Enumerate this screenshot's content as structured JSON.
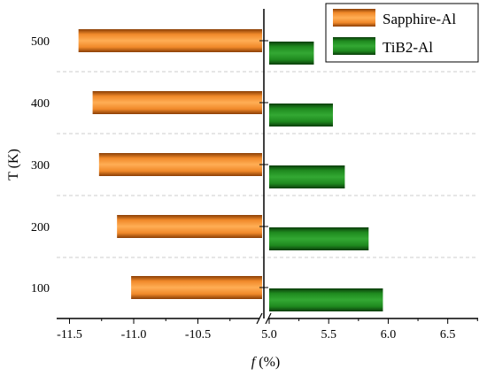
{
  "chart_data": {
    "type": "bar",
    "orientation": "horizontal",
    "broken_x_axis": true,
    "categories": [
      "100",
      "200",
      "300",
      "400",
      "500"
    ],
    "series": [
      {
        "name": "Sapphire-Al",
        "values": [
          -11.02,
          -11.13,
          -11.27,
          -11.32,
          -11.43
        ],
        "color": "#e87b12",
        "panel": "left"
      },
      {
        "name": "TiB2-Al",
        "values": [
          6.0,
          5.88,
          5.68,
          5.58,
          5.42
        ],
        "color": "#1e7d1e",
        "panel": "right"
      }
    ],
    "left_panel": {
      "xlim": [
        -11.6,
        -10.0
      ],
      "ticks": [
        "-11.5",
        "-11.0",
        "-10.5"
      ],
      "tick_values": [
        -11.5,
        -11.0,
        -10.5
      ]
    },
    "right_panel": {
      "xlim": [
        5.0,
        6.8
      ],
      "ticks": [
        "5.0",
        "5.5",
        "6.0",
        "6.5"
      ],
      "tick_values": [
        5.0,
        5.5,
        6.0,
        6.5
      ]
    },
    "xlabel_italic": "f",
    "xlabel_rest": " (%)",
    "ylabel": "T (K)",
    "legend_position": "top-right",
    "grid": "horizontal-dashed"
  }
}
